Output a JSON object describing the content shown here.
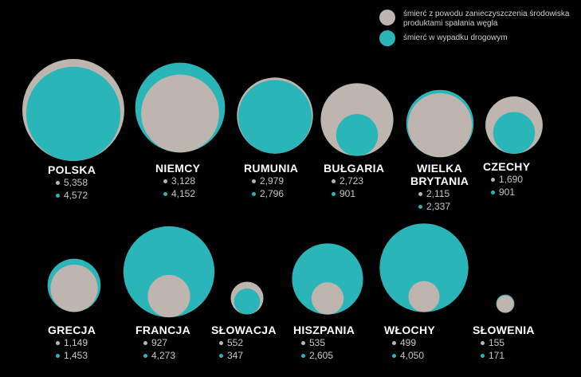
{
  "colors": {
    "background": "#000000",
    "pollution": "#bdb5ae",
    "road": "#2ab5b8",
    "text": "#ffffff",
    "value_text": "#c7c7c7"
  },
  "legend": {
    "pollution_label": "śmierć z powodu zanieczyszczenia środowiska produktami spalania węgla",
    "road_label": "śmierć w wypadku drogowym"
  },
  "chart_data": {
    "type": "bubble",
    "series": [
      {
        "name": "śmierć z powodu zanieczyszczenia środowiska produktami spalania węgla",
        "key": "pollution"
      },
      {
        "name": "śmierć w wypadku drogowym",
        "key": "road"
      }
    ],
    "countries": [
      {
        "name": "POLSKA",
        "pollution": 5358,
        "road": 4572,
        "pollution_label": "5,358",
        "road_label": "4,572"
      },
      {
        "name": "NIEMCY",
        "pollution": 3128,
        "road": 4152,
        "pollution_label": "3,128",
        "road_label": "4,152"
      },
      {
        "name": "RUMUNIA",
        "pollution": 2979,
        "road": 2796,
        "pollution_label": "2,979",
        "road_label": "2,796"
      },
      {
        "name": "BUŁGARIA",
        "pollution": 2723,
        "road": 901,
        "pollution_label": "2,723",
        "road_label": "901"
      },
      {
        "name": "WIELKA\nBRYTANIA",
        "pollution": 2115,
        "road": 2337,
        "pollution_label": "2,115",
        "road_label": "2,337"
      },
      {
        "name": "CZECHY",
        "pollution": 1690,
        "road": 901,
        "pollution_label": "1,690",
        "road_label": "901"
      },
      {
        "name": "GRECJA",
        "pollution": 1149,
        "road": 1453,
        "pollution_label": "1,149",
        "road_label": "1,453"
      },
      {
        "name": "FRANCJA",
        "pollution": 927,
        "road": 4273,
        "pollution_label": "927",
        "road_label": "4,273"
      },
      {
        "name": "SŁOWACJA",
        "pollution": 552,
        "road": 347,
        "pollution_label": "552",
        "road_label": "347"
      },
      {
        "name": "HISZPANIA",
        "pollution": 535,
        "road": 2605,
        "pollution_label": "535",
        "road_label": "2,605"
      },
      {
        "name": "WŁOCHY",
        "pollution": 499,
        "road": 4050,
        "pollution_label": "499",
        "road_label": "4,050"
      },
      {
        "name": "SŁOWENIA",
        "pollution": 155,
        "road": 171,
        "pollution_label": "155",
        "road_label": "171"
      }
    ]
  }
}
